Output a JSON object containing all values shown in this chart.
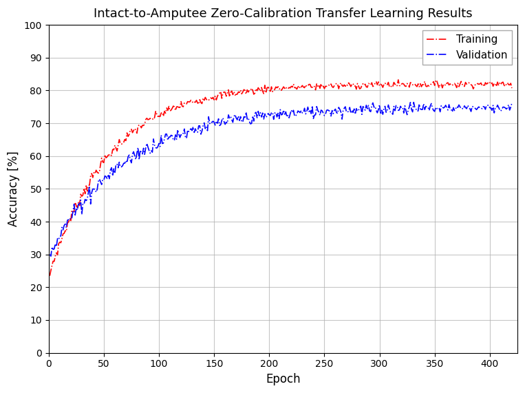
{
  "title": "Intact-to-Amputee Zero-Calibration Transfer Learning Results",
  "xlabel": "Epoch",
  "ylabel": "Accuracy [%]",
  "xlim": [
    0,
    425
  ],
  "ylim": [
    0,
    100
  ],
  "xticks": [
    0,
    50,
    100,
    150,
    200,
    250,
    300,
    350,
    400
  ],
  "yticks": [
    0,
    10,
    20,
    30,
    40,
    50,
    60,
    70,
    80,
    90,
    100
  ],
  "training_color": "red",
  "validation_color": "blue",
  "training_label": "Training",
  "validation_label": "Validation",
  "line_style": "-.",
  "line_width": 1.2,
  "total_epochs": 420,
  "train_start": 23.5,
  "train_end": 82.0,
  "val_start": 30.0,
  "val_end": 75.0,
  "background_color": "#ffffff",
  "grid_color": "#b0b0b0",
  "title_fontsize": 13,
  "label_fontsize": 12,
  "tick_fontsize": 10,
  "legend_fontsize": 11
}
